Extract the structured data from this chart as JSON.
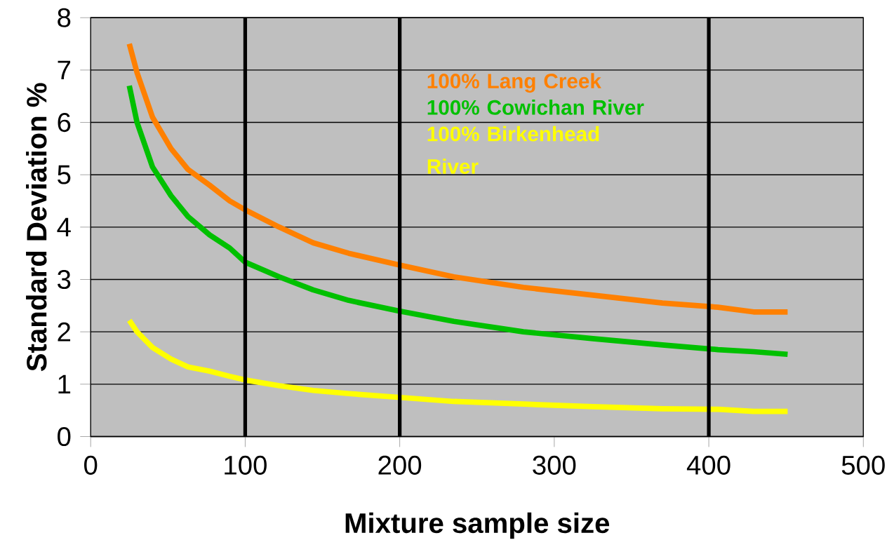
{
  "chart_data": {
    "type": "line",
    "xlabel": "Mixture sample size",
    "ylabel": "Standard Deviation %",
    "x": [
      25,
      30,
      40,
      52,
      63,
      77,
      90,
      100,
      122,
      144,
      167,
      199,
      235,
      280,
      325,
      370,
      406,
      429,
      451
    ],
    "series": [
      {
        "name": "100% Lang Creek",
        "color": "#ff8000",
        "values": [
          7.5,
          6.95,
          6.1,
          5.5,
          5.1,
          4.8,
          4.5,
          4.33,
          4.0,
          3.7,
          3.5,
          3.28,
          3.05,
          2.85,
          2.7,
          2.55,
          2.47,
          2.38,
          2.38
        ]
      },
      {
        "name": "100% Cowichan River",
        "color": "#00c000",
        "values": [
          6.7,
          6.0,
          5.15,
          4.6,
          4.2,
          3.85,
          3.6,
          3.33,
          3.05,
          2.8,
          2.6,
          2.4,
          2.2,
          2.0,
          1.87,
          1.75,
          1.66,
          1.62,
          1.57
        ]
      },
      {
        "name": "100% Birkenhead River",
        "color": "#ffff00",
        "values": [
          2.22,
          2.0,
          1.7,
          1.48,
          1.33,
          1.25,
          1.15,
          1.08,
          0.97,
          0.88,
          0.82,
          0.75,
          0.67,
          0.62,
          0.57,
          0.53,
          0.52,
          0.48,
          0.48
        ]
      }
    ],
    "xlim": [
      0,
      500
    ],
    "xticks": [
      0,
      100,
      200,
      300,
      400,
      500
    ],
    "ylim": [
      0,
      8
    ],
    "yticks": [
      0,
      1,
      2,
      3,
      4,
      5,
      6,
      7,
      8
    ],
    "grid": "y",
    "legend": "top",
    "marker": "none",
    "line_style": "solid",
    "ref_lines": [
      {
        "axis": "x",
        "value": 100,
        "color": "#000000"
      },
      {
        "axis": "x",
        "value": 200,
        "color": "#000000"
      },
      {
        "axis": "x",
        "value": 400,
        "color": "#000000"
      }
    ]
  }
}
